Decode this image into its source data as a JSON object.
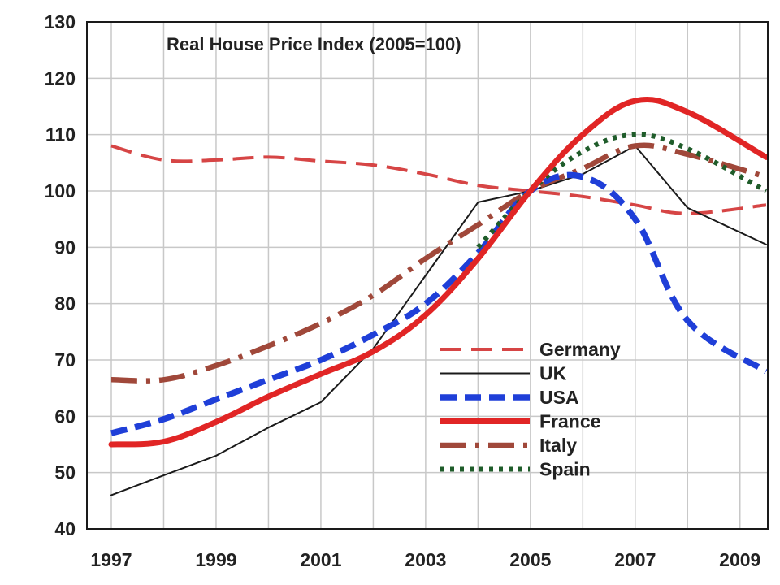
{
  "chart_data": {
    "type": "line",
    "title": "Real House Price Index (2005=100)",
    "xlabel": "",
    "ylabel": "",
    "xlim": [
      1997,
      2009.5
    ],
    "ylim": [
      40,
      130
    ],
    "x_ticks": [
      "1997",
      "1999",
      "2001",
      "2003",
      "2005",
      "2007",
      "2009"
    ],
    "y_ticks": [
      "40",
      "50",
      "60",
      "70",
      "80",
      "90",
      "100",
      "110",
      "120",
      "130"
    ],
    "grid": true,
    "legend_position": "bottom-right",
    "series": [
      {
        "name": "Germany",
        "color": "#d64545",
        "style": "dashed",
        "x": [
          1997,
          1998,
          1999,
          2000,
          2001,
          2002,
          2003,
          2004,
          2005,
          2006,
          2007,
          2008,
          2009.5
        ],
        "y": [
          108,
          105.5,
          105.5,
          106,
          105.3,
          104.6,
          103,
          101,
          100,
          99,
          97.5,
          96,
          97.5
        ]
      },
      {
        "name": "UK",
        "color": "#1a1a1a",
        "style": "solid-thin",
        "x": [
          1997,
          1998,
          1999,
          2000,
          2001,
          2002,
          2003,
          2004,
          2005,
          2006,
          2007,
          2008,
          2009.5
        ],
        "y": [
          46,
          49.5,
          53,
          58,
          62.5,
          72,
          85,
          98,
          100,
          103,
          108,
          97,
          90.5
        ]
      },
      {
        "name": "USA",
        "color": "#1f3fd8",
        "style": "dashed-thick",
        "x": [
          1997,
          1998,
          1999,
          2000,
          2001,
          2002,
          2003,
          2004,
          2005,
          2006,
          2007,
          2008,
          2009.5
        ],
        "y": [
          57,
          59.5,
          63,
          66.5,
          70,
          74.5,
          80,
          89,
          100,
          102.5,
          95,
          77,
          68
        ]
      },
      {
        "name": "France",
        "color": "#e12525",
        "style": "solid-thick",
        "x": [
          1997,
          1998,
          1999,
          2000,
          2001,
          2002,
          2003,
          2004,
          2005,
          2006,
          2007,
          2008,
          2009.5
        ],
        "y": [
          55,
          55.5,
          59,
          63.5,
          67.5,
          71.5,
          78,
          88,
          100,
          110,
          116,
          114,
          106
        ]
      },
      {
        "name": "Italy",
        "color": "#a0483a",
        "style": "dash-dot",
        "x": [
          1997,
          1998,
          1999,
          2000,
          2001,
          2002,
          2003,
          2004,
          2005,
          2006,
          2007,
          2008,
          2009.5
        ],
        "y": [
          66.5,
          66.5,
          69,
          72.5,
          76.5,
          81.5,
          88,
          94,
          100,
          104,
          108,
          106.5,
          102.5
        ]
      },
      {
        "name": "Spain",
        "color": "#1f5c2a",
        "style": "dotted",
        "x": [
          1997,
          1998,
          1999,
          2000,
          2001,
          2002,
          2003,
          2004,
          2005,
          2006,
          2007,
          2008,
          2009.5
        ],
        "y": [
          null,
          null,
          null,
          null,
          null,
          null,
          null,
          90,
          100,
          107,
          110,
          107.5,
          100
        ]
      }
    ]
  }
}
